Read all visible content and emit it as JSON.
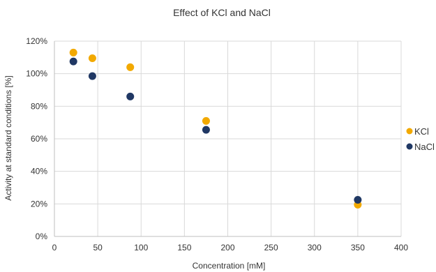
{
  "chart_data": {
    "type": "scatter",
    "title": "Effect of KCl and NaCl",
    "xlabel": "Concentration [mM]",
    "ylabel": "Activity at standard conditions [%]",
    "xlim": [
      0,
      400
    ],
    "ylim": [
      0,
      120
    ],
    "x_ticks": [
      0,
      50,
      100,
      150,
      200,
      250,
      300,
      350,
      400
    ],
    "y_ticks": [
      0,
      20,
      40,
      60,
      80,
      100,
      120
    ],
    "y_tick_suffix": "%",
    "grid": true,
    "legend_position": "right",
    "series": [
      {
        "name": "KCl",
        "color": "#f2a900",
        "points": [
          {
            "x": 21.9,
            "y": 113
          },
          {
            "x": 43.8,
            "y": 109.5
          },
          {
            "x": 87.5,
            "y": 104
          },
          {
            "x": 175,
            "y": 71
          },
          {
            "x": 350,
            "y": 19.5
          }
        ]
      },
      {
        "name": "NaCl",
        "color": "#203864",
        "points": [
          {
            "x": 21.9,
            "y": 107.5
          },
          {
            "x": 43.8,
            "y": 98.5
          },
          {
            "x": 87.5,
            "y": 86
          },
          {
            "x": 175,
            "y": 65.5
          },
          {
            "x": 350,
            "y": 22.5
          }
        ]
      }
    ]
  }
}
